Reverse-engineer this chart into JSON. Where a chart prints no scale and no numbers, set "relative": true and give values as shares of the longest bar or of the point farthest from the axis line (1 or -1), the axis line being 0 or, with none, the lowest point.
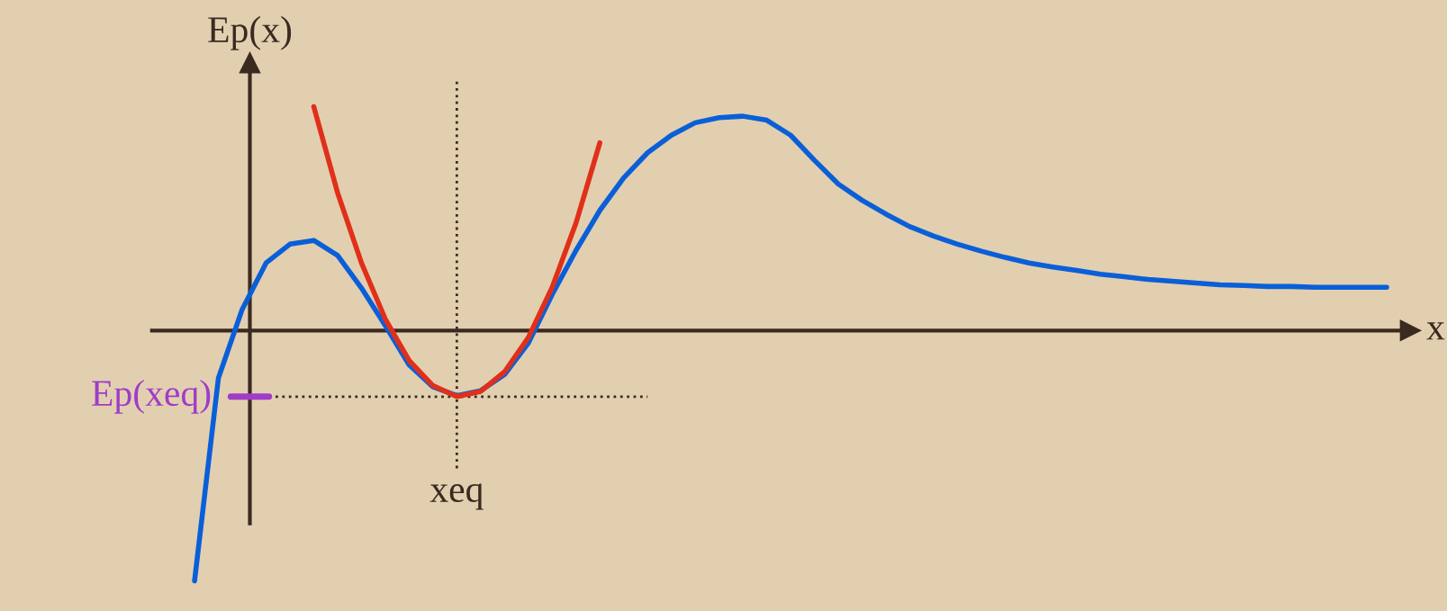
{
  "chart_data": {
    "type": "line",
    "relative": true,
    "xlabel": "x",
    "ylabel": "Ep(x)",
    "annotations": [
      "xeq"
    ],
    "marker": "none",
    "line_style": "solid",
    "categories": [
      null,
      null,
      null,
      null,
      null,
      null,
      null,
      null,
      null,
      null,
      null,
      null,
      null,
      null,
      null,
      null,
      null,
      null,
      null,
      null,
      null,
      null,
      null,
      null,
      null,
      null,
      null,
      null,
      null,
      null,
      null,
      null,
      null,
      null,
      null,
      null,
      null,
      null,
      null,
      null,
      null,
      null,
      null,
      null,
      null,
      null,
      null,
      null,
      null,
      null,
      null
    ],
    "series": [
      {
        "color": "#0a5fd8",
        "values": [
          -1.0,
          -0.19,
          0.085,
          0.27,
          0.345,
          0.36,
          0.3,
          0.17,
          0.02,
          -0.137,
          -0.225,
          -0.26,
          -0.24,
          -0.176,
          -0.05,
          0.144,
          0.32,
          0.48,
          0.61,
          0.71,
          0.78,
          0.83,
          0.85,
          0.856,
          0.84,
          0.78,
          0.68,
          0.585,
          0.52,
          0.465,
          0.415,
          0.377,
          0.345,
          0.317,
          0.292,
          0.27,
          0.254,
          0.24,
          0.225,
          0.215,
          0.204,
          0.197,
          0.19,
          0.183,
          0.18,
          0.176,
          0.176,
          0.173,
          0.173,
          0.173,
          0.173
        ]
      },
      {
        "color": "#e0301a",
        "values": [
          null,
          null,
          null,
          null,
          null,
          0.894,
          0.55,
          0.27,
          0.046,
          -0.12,
          -0.22,
          -0.264,
          -0.243,
          -0.165,
          -0.028,
          0.173,
          0.43,
          0.75,
          null,
          null,
          null,
          null,
          null,
          null,
          null,
          null,
          null,
          null,
          null,
          null,
          null,
          null,
          null,
          null,
          null,
          null,
          null,
          null,
          null,
          null,
          null,
          null,
          null,
          null,
          null,
          null,
          null,
          null,
          null,
          null,
          null
        ]
      }
    ],
    "ref_lines": [
      {
        "axis": "y",
        "value": -0.264,
        "label": "Ep(xeq)",
        "line_style": "dotted"
      }
    ]
  }
}
